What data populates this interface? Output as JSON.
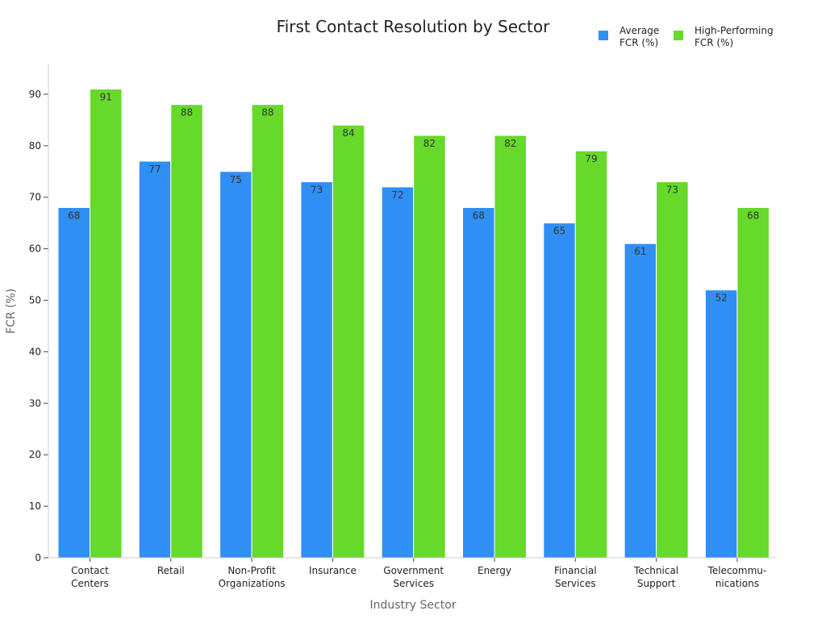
{
  "chart_data": {
    "type": "bar",
    "title": "First Contact Resolution by Sector",
    "xlabel": "Industry Sector",
    "ylabel": "FCR (%)",
    "ylim": [
      0,
      96
    ],
    "yticks": [
      0,
      10,
      20,
      30,
      40,
      50,
      60,
      70,
      80,
      90
    ],
    "grid": false,
    "legend_position": "top-right",
    "categories": [
      [
        "Contact",
        "Centers"
      ],
      [
        "Retail"
      ],
      [
        "Non-Profit",
        "Organizations"
      ],
      [
        "Insurance"
      ],
      [
        "Government",
        "Services"
      ],
      [
        "Energy"
      ],
      [
        "Financial",
        "Services"
      ],
      [
        "Technical",
        "Support"
      ],
      [
        "Telecommu-",
        "nications"
      ]
    ],
    "series": [
      {
        "name": [
          "Average",
          "FCR (%)"
        ],
        "color": "#2f8ff5",
        "values": [
          68,
          77,
          75,
          73,
          72,
          68,
          65,
          61,
          52
        ]
      },
      {
        "name": [
          "High-Performing",
          "FCR (%)"
        ],
        "color": "#66d92b",
        "values": [
          91,
          88,
          88,
          84,
          82,
          82,
          79,
          73,
          68
        ]
      }
    ]
  }
}
